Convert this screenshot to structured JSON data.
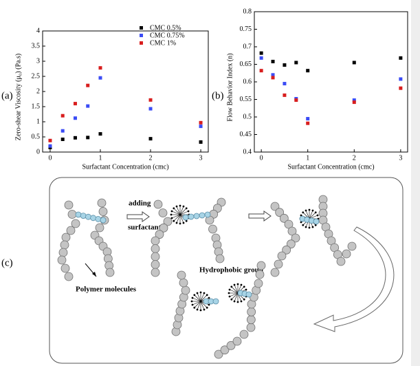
{
  "chart_data": [
    {
      "type": "scatter",
      "panel_label": "(a)",
      "x_label": "Surfactant Concentration (cmc)",
      "y_label": "Zero-shear Viscosity (μ₀) (Pa.s)",
      "x": [
        0,
        0.25,
        0.5,
        0.75,
        1,
        2,
        3
      ],
      "xlim": [
        -0.15,
        3.15
      ],
      "xticks": [
        0,
        1,
        2,
        3
      ],
      "ylim": [
        0,
        4
      ],
      "yticks": [
        0,
        0.5,
        1,
        1.5,
        2,
        2.5,
        3,
        3.5,
        4
      ],
      "legend": "upper right",
      "series": [
        {
          "name": "CMC 0.5%",
          "color": "#000000",
          "values": [
            0.15,
            0.42,
            0.47,
            0.48,
            0.6,
            0.44,
            0.33
          ]
        },
        {
          "name": "CMC 0.75%",
          "color": "#3b4cf5",
          "values": [
            0.2,
            0.7,
            1.12,
            1.52,
            2.45,
            1.43,
            0.85
          ]
        },
        {
          "name": "CMC 1%",
          "color": "#d81e1e",
          "values": [
            0.38,
            1.2,
            1.6,
            2.2,
            2.78,
            1.72,
            0.97
          ]
        }
      ]
    },
    {
      "type": "scatter",
      "panel_label": "(b)",
      "x_label": "Surfactant Concentration (cmc)",
      "y_label": "Flow Behavior Index (n)",
      "x": [
        0,
        0.25,
        0.5,
        0.75,
        1,
        2,
        3
      ],
      "xlim": [
        -0.15,
        3.15
      ],
      "xticks": [
        0,
        1,
        2,
        3
      ],
      "ylim": [
        0.4,
        0.8
      ],
      "yticks": [
        0.4,
        0.45,
        0.5,
        0.55,
        0.6,
        0.65,
        0.7,
        0.75,
        0.8
      ],
      "series": [
        {
          "name": "CMC 0.5%",
          "color": "#000000",
          "values": [
            0.682,
            0.658,
            0.648,
            0.655,
            0.632,
            0.655,
            0.668
          ]
        },
        {
          "name": "CMC 0.75%",
          "color": "#3b4cf5",
          "values": [
            0.668,
            0.62,
            0.595,
            0.552,
            0.495,
            0.548,
            0.608
          ]
        },
        {
          "name": "CMC 1%",
          "color": "#d81e1e",
          "values": [
            0.632,
            0.612,
            0.562,
            0.548,
            0.482,
            0.542,
            0.582
          ]
        }
      ]
    }
  ],
  "diagram": {
    "panel_label": "(c)",
    "adding": "adding",
    "surfactant": "surfactant",
    "hydrophobic": "Hydrophobic group",
    "polymer": "Polymer molecules"
  }
}
